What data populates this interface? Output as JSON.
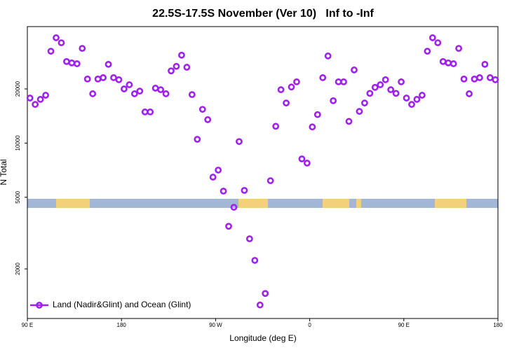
{
  "chart_data": {
    "type": "scatter",
    "title": "22.5S-17.5S November (Ver 10)   Inf to -Inf",
    "xlabel": "Longitude (deg E)",
    "ylabel": "N Total",
    "xlim": [
      90,
      540
    ],
    "ylim": [
      1060,
      44400
    ],
    "ylog": true,
    "grid": false,
    "legend": "bottom-left",
    "xticks": [
      {
        "value": 90,
        "label": "90 E"
      },
      180,
      {
        "value": 270,
        "label": "90 W"
      },
      {
        "value": 360,
        "label": "0"
      },
      {
        "value": 450,
        "label": "90 E"
      },
      {
        "value": 540,
        "label": "180"
      }
    ],
    "yticks": [
      2000,
      5000,
      10000,
      20000
    ],
    "x": [
      92.5,
      97.5,
      102.5,
      107.5,
      112.5,
      117.5,
      122.5,
      127.5,
      132.5,
      137.5,
      142.5,
      147.5,
      152.5,
      157.5,
      162.5,
      167.5,
      172.5,
      177.5,
      182.5,
      187.5,
      192.5,
      197.5,
      202.5,
      207.5,
      212.5,
      217.5,
      222.5,
      227.5,
      232.5,
      237.5,
      242.5,
      247.5,
      252.5,
      257.5,
      262.5,
      267.5,
      272.5,
      277.5,
      282.5,
      287.5,
      292.5,
      297.5,
      302.5,
      307.5,
      312.5,
      317.5,
      322.5,
      327.5,
      332.5,
      337.5,
      342.5,
      347.5,
      352.5,
      357.5,
      362.5,
      367.5,
      372.5,
      377.5,
      382.5,
      387.5,
      392.5,
      397.5,
      402.5,
      407.5,
      412.5,
      417.5,
      422.5,
      427.5,
      432.5,
      437.5,
      442.5,
      447.5,
      452.5,
      457.5,
      462.5,
      467.5,
      472.5,
      477.5,
      482.5,
      487.5,
      492.5,
      497.5,
      502.5,
      507.5,
      512.5,
      517.5,
      522.5,
      527.5,
      532.5,
      537.5
    ],
    "series": [
      {
        "name": "Land (Nadir&Glint) and Ocean (Glint)",
        "color": "#a020f0",
        "values": [
          17800,
          16400,
          17500,
          18450,
          32400,
          38500,
          36100,
          28400,
          27900,
          27600,
          33600,
          22700,
          18800,
          22700,
          23100,
          27400,
          23100,
          22500,
          20000,
          21100,
          18800,
          19450,
          14900,
          14900,
          20200,
          19800,
          18800,
          25200,
          26700,
          30800,
          26400,
          18600,
          10500,
          15400,
          13500,
          6470,
          7080,
          5410,
          3450,
          4400,
          10200,
          5460,
          2940,
          2230,
          1260,
          1460,
          6180,
          12400,
          19800,
          16700,
          20500,
          21900,
          8170,
          7740,
          12300,
          14400,
          23100,
          30500,
          17200,
          21900,
          21900,
          13200,
          25500,
          15000,
          16700,
          18900,
          20400,
          21100,
          22500,
          19800,
          18900,
          21900,
          17800,
          16400,
          17500,
          18450,
          32400,
          38500,
          36100,
          28400,
          27900,
          27600,
          33600,
          22700,
          18800,
          22700,
          23100,
          27400,
          23100,
          22500
        ]
      }
    ]
  }
}
